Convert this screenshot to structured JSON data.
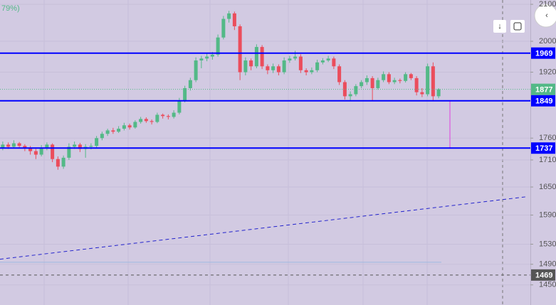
{
  "chart_data": {
    "type": "candlestick",
    "top_label": "79%)",
    "log_scale": true,
    "grid": true,
    "up_color": "#53b987",
    "down_color": "#eb4d5c",
    "ylim": [
      1412,
      2112
    ],
    "yticks": [
      2100,
      2000,
      1920,
      1760,
      1710,
      1650,
      1590,
      1530,
      1490,
      1450
    ],
    "candles": [
      [
        1738,
        1752,
        1732,
        1745
      ],
      [
        1745,
        1750,
        1735,
        1740
      ],
      [
        1740,
        1755,
        1736,
        1748
      ],
      [
        1748,
        1751,
        1736,
        1742
      ],
      [
        1742,
        1746,
        1730,
        1738
      ],
      [
        1738,
        1742,
        1722,
        1730
      ],
      [
        1730,
        1735,
        1712,
        1722
      ],
      [
        1722,
        1744,
        1718,
        1738
      ],
      [
        1738,
        1750,
        1732,
        1745
      ],
      [
        1745,
        1748,
        1705,
        1712
      ],
      [
        1712,
        1718,
        1688,
        1695
      ],
      [
        1695,
        1720,
        1690,
        1715
      ],
      [
        1715,
        1748,
        1710,
        1740
      ],
      [
        1740,
        1752,
        1735,
        1745
      ],
      [
        1745,
        1749,
        1728,
        1735
      ],
      [
        1735,
        1746,
        1715,
        1740
      ],
      [
        1740,
        1748,
        1734,
        1742
      ],
      [
        1742,
        1765,
        1738,
        1760
      ],
      [
        1760,
        1775,
        1755,
        1770
      ],
      [
        1770,
        1782,
        1765,
        1778
      ],
      [
        1778,
        1784,
        1770,
        1775
      ],
      [
        1775,
        1788,
        1772,
        1782
      ],
      [
        1782,
        1796,
        1778,
        1790
      ],
      [
        1790,
        1794,
        1780,
        1785
      ],
      [
        1785,
        1802,
        1782,
        1798
      ],
      [
        1798,
        1810,
        1794,
        1805
      ],
      [
        1805,
        1809,
        1796,
        1800
      ],
      [
        1800,
        1804,
        1792,
        1798
      ],
      [
        1798,
        1820,
        1795,
        1815
      ],
      [
        1815,
        1818,
        1806,
        1812
      ],
      [
        1812,
        1816,
        1804,
        1810
      ],
      [
        1810,
        1826,
        1806,
        1820
      ],
      [
        1820,
        1856,
        1816,
        1850
      ],
      [
        1850,
        1886,
        1845,
        1880
      ],
      [
        1880,
        1906,
        1874,
        1900
      ],
      [
        1900,
        1958,
        1895,
        1950
      ],
      [
        1950,
        1962,
        1930,
        1955
      ],
      [
        1955,
        1968,
        1948,
        1960
      ],
      [
        1960,
        1972,
        1952,
        1965
      ],
      [
        1965,
        2018,
        1960,
        2010
      ],
      [
        2010,
        2068,
        2005,
        2060
      ],
      [
        2060,
        2082,
        2050,
        2075
      ],
      [
        2075,
        2080,
        2030,
        2040
      ],
      [
        2040,
        2045,
        1900,
        1920
      ],
      [
        1920,
        1958,
        1912,
        1950
      ],
      [
        1950,
        1955,
        1925,
        1935
      ],
      [
        1935,
        1992,
        1930,
        1985
      ],
      [
        1985,
        1990,
        1928,
        1935
      ],
      [
        1935,
        1940,
        1915,
        1925
      ],
      [
        1925,
        1942,
        1918,
        1935
      ],
      [
        1935,
        1940,
        1912,
        1920
      ],
      [
        1920,
        1958,
        1915,
        1950
      ],
      [
        1950,
        1962,
        1944,
        1955
      ],
      [
        1955,
        1975,
        1950,
        1960
      ],
      [
        1960,
        1966,
        1918,
        1925
      ],
      [
        1925,
        1930,
        1912,
        1920
      ],
      [
        1920,
        1932,
        1915,
        1925
      ],
      [
        1925,
        1952,
        1920,
        1945
      ],
      [
        1945,
        1956,
        1940,
        1950
      ],
      [
        1950,
        1962,
        1946,
        1955
      ],
      [
        1955,
        1960,
        1928,
        1935
      ],
      [
        1935,
        1940,
        1888,
        1895
      ],
      [
        1895,
        1900,
        1852,
        1860
      ],
      [
        1860,
        1872,
        1850,
        1865
      ],
      [
        1865,
        1890,
        1860,
        1885
      ],
      [
        1885,
        1900,
        1880,
        1895
      ],
      [
        1895,
        1912,
        1888,
        1905
      ],
      [
        1905,
        1910,
        1848,
        1880
      ],
      [
        1880,
        1906,
        1876,
        1900
      ],
      [
        1900,
        1922,
        1895,
        1915
      ],
      [
        1915,
        1920,
        1890,
        1895
      ],
      [
        1895,
        1906,
        1890,
        1900
      ],
      [
        1900,
        1904,
        1892,
        1898
      ],
      [
        1898,
        1920,
        1894,
        1915
      ],
      [
        1915,
        1918,
        1900,
        1905
      ],
      [
        1905,
        1910,
        1862,
        1870
      ],
      [
        1870,
        1880,
        1858,
        1865
      ],
      [
        1865,
        1942,
        1860,
        1935
      ],
      [
        1935,
        1945,
        1850,
        1860
      ],
      [
        1860,
        1880,
        1855,
        1877
      ]
    ],
    "hlines": [
      {
        "value": 1969,
        "color": "#0000ff",
        "style": "solid"
      },
      {
        "value": 1849,
        "color": "#0000ff",
        "style": "solid"
      },
      {
        "value": 1737,
        "color": "#0000ff",
        "style": "solid"
      },
      {
        "value": 1469,
        "color": "#555555",
        "style": "dashed"
      }
    ],
    "last_price": {
      "value": 1877,
      "color": "#53b987"
    },
    "trendline": {
      "y": [
        1500,
        1629
      ],
      "color": "#2222cc"
    },
    "support_line": {
      "value": 1494,
      "color": "#9fb8e0"
    },
    "measure": {
      "from": 1849,
      "to": 1737,
      "color": "#e040e0"
    }
  }
}
